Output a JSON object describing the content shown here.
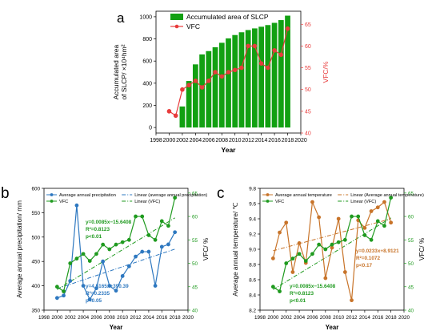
{
  "chart_data": [
    {
      "panel_label": "a",
      "type": "bar+line",
      "xlabel": "Year",
      "ylabel_left": "Accumulated area of SLCP/ ×10⁴hm²",
      "ylabel_right": "VFC/%",
      "xlim": [
        1998,
        2020
      ],
      "x_ticks": [
        1998,
        2000,
        2002,
        2004,
        2006,
        2008,
        2010,
        2012,
        2014,
        2016,
        2018,
        2020
      ],
      "ylim_left": [
        -50,
        1050
      ],
      "y_ticks_left": [
        0,
        200,
        400,
        600,
        800,
        1000
      ],
      "ylim_right": [
        40,
        68
      ],
      "y_ticks_right": [
        40,
        45,
        50,
        55,
        60,
        65
      ],
      "legend": [
        "Accumulated area of SLCP",
        "VFC"
      ],
      "colors": {
        "bars": "#12a012",
        "vfc": "#e83c3c",
        "right_axis": "#e83c3c"
      },
      "bars": {
        "name": "Accumulated area of SLCP",
        "x": [
          2002,
          2003,
          2004,
          2005,
          2006,
          2007,
          2008,
          2009,
          2010,
          2011,
          2012,
          2013,
          2014,
          2015,
          2016,
          2017,
          2018
        ],
        "values": [
          190,
          420,
          570,
          660,
          690,
          725,
          765,
          805,
          835,
          860,
          880,
          895,
          910,
          925,
          945,
          970,
          1010
        ]
      },
      "series": [
        {
          "name": "VFC",
          "x": [
            2000,
            2001,
            2002,
            2003,
            2004,
            2005,
            2006,
            2007,
            2008,
            2009,
            2010,
            2011,
            2012,
            2013,
            2014,
            2015,
            2016,
            2017,
            2018
          ],
          "values": [
            45.0,
            44.0,
            50.0,
            51.0,
            52.0,
            50.5,
            52.0,
            54.0,
            53.0,
            54.0,
            54.5,
            55.0,
            60.0,
            60.0,
            56.0,
            55.0,
            59.0,
            58.0,
            64.0
          ]
        }
      ]
    },
    {
      "panel_label": "b",
      "type": "line",
      "xlabel": "Year",
      "ylabel_left": "Average annual precipitation/ mm",
      "ylabel_right": "VFC/ %",
      "xlim": [
        1998,
        2020
      ],
      "x_ticks": [
        1998,
        2000,
        2002,
        2004,
        2006,
        2008,
        2010,
        2012,
        2014,
        2016,
        2018,
        2020
      ],
      "ylim_left": [
        350,
        600
      ],
      "y_ticks_left": [
        350,
        400,
        450,
        500,
        550,
        600
      ],
      "ylim_right": [
        40,
        66
      ],
      "y_ticks_right": [
        40,
        45,
        50,
        55,
        60,
        65
      ],
      "legend": [
        "Average annual precipitation",
        "Linear (average annual precipitation)",
        "VFC",
        "Linear (VFC)"
      ],
      "colors": {
        "precip": "#2e78c0",
        "vfc": "#1f9a1f"
      },
      "series": [
        {
          "name": "Average annual precipitation",
          "x": [
            2000,
            2001,
            2002,
            2003,
            2004,
            2005,
            2006,
            2007,
            2008,
            2009,
            2010,
            2011,
            2012,
            2013,
            2014,
            2015,
            2016,
            2017,
            2018
          ],
          "values": [
            375,
            380,
            410,
            565,
            400,
            372,
            395,
            450,
            400,
            390,
            420,
            440,
            460,
            470,
            470,
            400,
            480,
            485,
            510
          ]
        },
        {
          "name": "VFC",
          "x": [
            2000,
            2001,
            2002,
            2003,
            2004,
            2005,
            2006,
            2007,
            2008,
            2009,
            2010,
            2011,
            2012,
            2013,
            2014,
            2015,
            2016,
            2017,
            2018
          ],
          "values": [
            45.0,
            44.0,
            50.0,
            51.0,
            52.0,
            50.5,
            52.0,
            54.0,
            53.0,
            54.0,
            54.5,
            55.0,
            60.0,
            60.0,
            56.0,
            55.0,
            59.0,
            58.0,
            64.0
          ]
        }
      ],
      "trendlines": [
        {
          "name": "Linear (average annual precipitation)",
          "slope": 4.5165,
          "intercept": -8639.0,
          "axis": "left"
        },
        {
          "name": "Linear (VFC)",
          "slope": 0.85,
          "intercept": -1655.6,
          "axis": "right"
        }
      ],
      "annotations": [
        {
          "lines": [
            "y=0.0085x−15.6408",
            "R²=0.8123",
            "p<0.01"
          ],
          "color": "#1f9a1f"
        },
        {
          "lines": [
            "y=4.5165x+390.39",
            "R²=0.2335",
            "p<0.05"
          ],
          "color": "#2e78c0"
        }
      ]
    },
    {
      "panel_label": "c",
      "type": "line",
      "xlabel": "Year",
      "ylabel_left": "Average annual temperature/ ℃",
      "ylabel_right": "VFC/ %",
      "xlim": [
        1998,
        2020
      ],
      "x_ticks": [
        1998,
        2000,
        2002,
        2004,
        2006,
        2008,
        2010,
        2012,
        2014,
        2016,
        2018,
        2020
      ],
      "ylim_left": [
        8.2,
        9.8
      ],
      "y_ticks_left": [
        8.2,
        8.4,
        8.6,
        8.8,
        9.0,
        9.2,
        9.4,
        9.6,
        9.8
      ],
      "ylim_right": [
        40,
        66
      ],
      "y_ticks_right": [
        40,
        45,
        50,
        55,
        60,
        65
      ],
      "legend": [
        "Average annual temperature",
        "Linear (Average annual temperature)",
        "VFC",
        "Linear (VFC)"
      ],
      "colors": {
        "temp": "#c8742a",
        "vfc": "#1f9a1f"
      },
      "series": [
        {
          "name": "Average annual temperature",
          "x": [
            2000,
            2001,
            2002,
            2003,
            2004,
            2005,
            2006,
            2007,
            2008,
            2009,
            2010,
            2011,
            2012,
            2013,
            2014,
            2015,
            2016,
            2017,
            2018
          ],
          "values": [
            8.88,
            9.22,
            9.35,
            8.7,
            9.08,
            8.82,
            9.62,
            9.42,
            8.62,
            9.02,
            9.4,
            8.7,
            8.33,
            9.38,
            9.28,
            9.5,
            9.55,
            9.62,
            9.35
          ]
        },
        {
          "name": "VFC",
          "x": [
            2000,
            2001,
            2002,
            2003,
            2004,
            2005,
            2006,
            2007,
            2008,
            2009,
            2010,
            2011,
            2012,
            2013,
            2014,
            2015,
            2016,
            2017,
            2018
          ],
          "values": [
            45.0,
            44.0,
            50.0,
            51.0,
            52.0,
            50.5,
            52.0,
            54.0,
            53.0,
            54.0,
            54.5,
            55.0,
            60.0,
            60.0,
            56.0,
            55.0,
            59.0,
            58.0,
            64.0
          ]
        }
      ],
      "trendlines": [
        {
          "name": "Linear (Average annual temperature)",
          "slope": 0.0233,
          "intercept": -37.62,
          "axis": "left"
        },
        {
          "name": "Linear (VFC)",
          "slope": 0.85,
          "intercept": -1655.6,
          "axis": "right"
        }
      ],
      "annotations": [
        {
          "lines": [
            "y=0.0233x+8.9121",
            "R²=0.1072",
            "p<0.17"
          ],
          "color": "#c8742a"
        },
        {
          "lines": [
            "y=0.0085x−15.6408",
            "R²=0.8123",
            "p<0.01"
          ],
          "color": "#1f9a1f"
        }
      ]
    }
  ]
}
